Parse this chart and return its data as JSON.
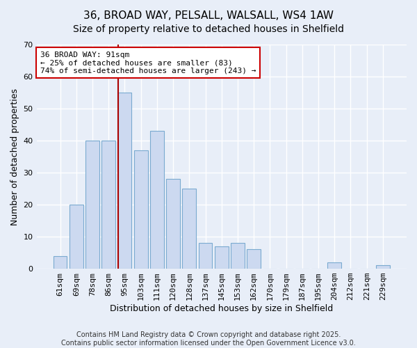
{
  "title": "36, BROAD WAY, PELSALL, WALSALL, WS4 1AW",
  "subtitle": "Size of property relative to detached houses in Shelfield",
  "xlabel": "Distribution of detached houses by size in Shelfield",
  "ylabel": "Number of detached properties",
  "categories": [
    "61sqm",
    "69sqm",
    "78sqm",
    "86sqm",
    "95sqm",
    "103sqm",
    "111sqm",
    "120sqm",
    "128sqm",
    "137sqm",
    "145sqm",
    "153sqm",
    "162sqm",
    "170sqm",
    "179sqm",
    "187sqm",
    "195sqm",
    "204sqm",
    "212sqm",
    "221sqm",
    "229sqm"
  ],
  "values": [
    4,
    20,
    40,
    40,
    55,
    37,
    43,
    28,
    25,
    8,
    7,
    8,
    6,
    0,
    0,
    0,
    0,
    2,
    0,
    0,
    1
  ],
  "bar_color": "#ccd9f0",
  "bar_edge_color": "#7aaad0",
  "annotation_title": "36 BROAD WAY: 91sqm",
  "annotation_line1": "← 25% of detached houses are smaller (83)",
  "annotation_line2": "74% of semi-detached houses are larger (243) →",
  "annotation_box_facecolor": "#ffffff",
  "annotation_box_edgecolor": "#cc0000",
  "vline_color": "#aa0000",
  "vline_x_index": 4,
  "ylim": [
    0,
    70
  ],
  "yticks": [
    0,
    10,
    20,
    30,
    40,
    50,
    60,
    70
  ],
  "footer1": "Contains HM Land Registry data © Crown copyright and database right 2025.",
  "footer2": "Contains public sector information licensed under the Open Government Licence v3.0.",
  "bg_color": "#e8eef8",
  "plot_bg_color": "#e8eef8",
  "title_fontsize": 11,
  "subtitle_fontsize": 10,
  "axis_label_fontsize": 9,
  "tick_fontsize": 8,
  "annotation_fontsize": 8,
  "footer_fontsize": 7
}
